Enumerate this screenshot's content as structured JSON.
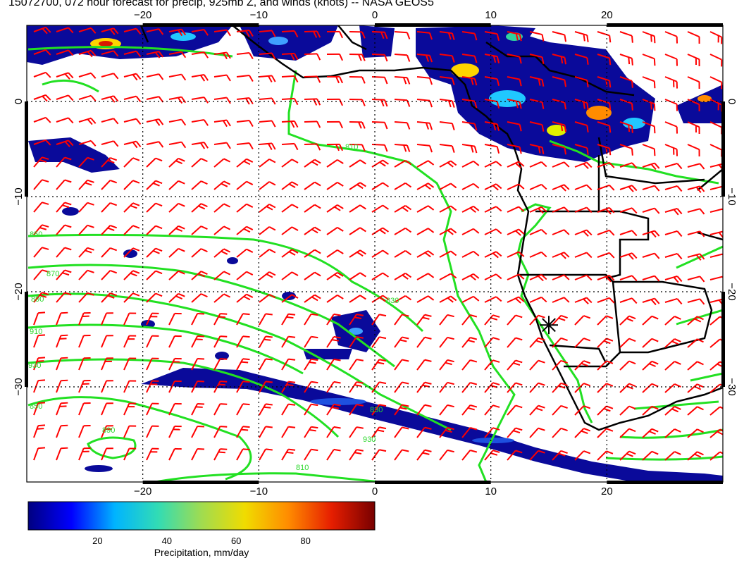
{
  "title": "15072700, 072 hour forecast for precip, 925mb Z, and winds (knots) -- NASA GEOS5",
  "axes": {
    "lon_ticks": [
      {
        "value": -20,
        "label": "−20"
      },
      {
        "value": -10,
        "label": "−10"
      },
      {
        "value": 0,
        "label": "0"
      },
      {
        "value": 10,
        "label": "10"
      },
      {
        "value": 20,
        "label": "20"
      }
    ],
    "lat_ticks": [
      {
        "value": 0,
        "label": "0"
      },
      {
        "value": -10,
        "label": "−10"
      },
      {
        "value": -20,
        "label": "−20"
      },
      {
        "value": -30,
        "label": "−30"
      }
    ],
    "lon_range": [
      -30,
      30
    ],
    "lat_range": [
      -40,
      8
    ]
  },
  "colorbar": {
    "title": "Precipitation, mm/day",
    "ticks": [
      "20",
      "40",
      "60",
      "80"
    ],
    "tick_values": [
      20,
      40,
      60,
      80
    ],
    "range": [
      0,
      100
    ],
    "colors": [
      "#000080",
      "#0000ff",
      "#00b4ff",
      "#32dcb4",
      "#a0dc50",
      "#f0dc00",
      "#ff8c00",
      "#e61e00",
      "#780000"
    ]
  },
  "contour_labels": [
    "810",
    "830",
    "850",
    "870",
    "890",
    "910",
    "930",
    "850",
    "890",
    "830",
    "810",
    "930"
  ],
  "colors": {
    "contour": "#22e022",
    "wind_barb": "#ff0000",
    "coastline": "#000000",
    "precip_low": "#00007f"
  },
  "marker": {
    "type": "asterisk",
    "lon": 15,
    "lat": -23.5
  }
}
